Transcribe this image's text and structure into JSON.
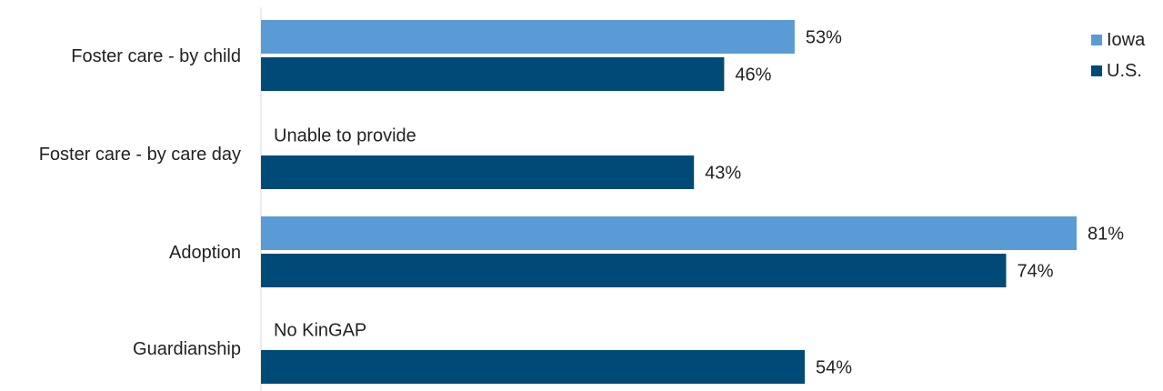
{
  "chart_data": {
    "type": "bar",
    "orientation": "horizontal",
    "categories": [
      "Foster care - by child",
      "Foster care - by care day",
      "Adoption",
      "Guardianship"
    ],
    "series": [
      {
        "name": "Iowa",
        "color": "#5b9bd5",
        "values": [
          53,
          null,
          81,
          null
        ],
        "labels": [
          "53%",
          "",
          "81%",
          ""
        ]
      },
      {
        "name": "U.S.",
        "color": "#004a77",
        "values": [
          46,
          43,
          74,
          54
        ],
        "labels": [
          "46%",
          "43%",
          "74%",
          "54%"
        ]
      }
    ],
    "notes": [
      "",
      "Unable to provide",
      "",
      "No KinGAP"
    ],
    "xlim": [
      0,
      81
    ],
    "grid": false,
    "legend": "top-right"
  }
}
